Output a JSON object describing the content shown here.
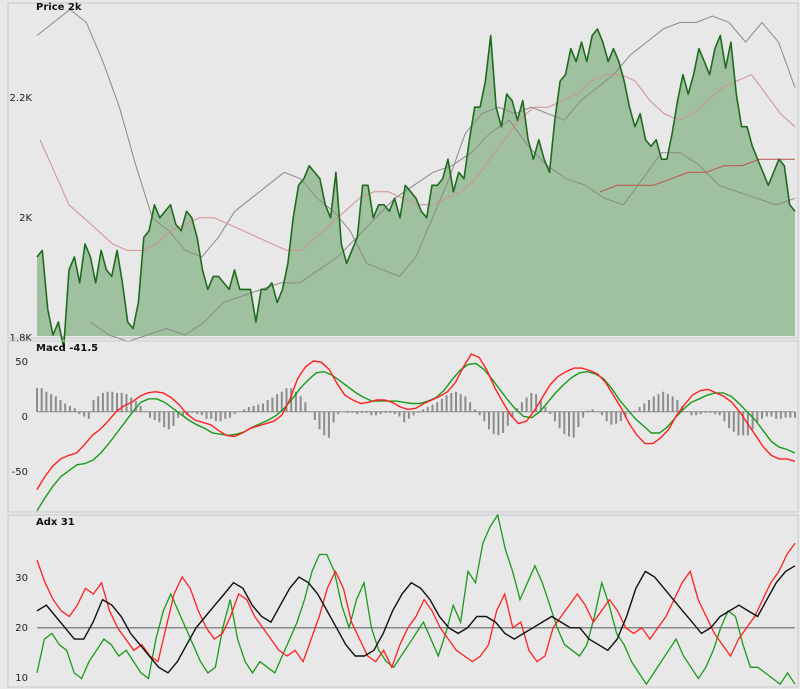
{
  "panels": {
    "price": {
      "title": "Price 2k",
      "ticks": [
        "2.2K",
        "2K",
        "1.8K"
      ]
    },
    "macd": {
      "title": "Macd -41.5",
      "ticks": [
        "50",
        "0",
        "-50"
      ]
    },
    "adx": {
      "title": "Adx 31",
      "ticks": [
        "30",
        "20",
        "10"
      ]
    }
  },
  "colors": {
    "background": "#e8e8e8",
    "border": "#c8c8c8",
    "area_fill": "#9fc19f",
    "price_line": "#1e6b1e",
    "band": "#8a8a8a",
    "ma": "#d09090",
    "long_ma": "#c0504d",
    "macd_line": "#ff2020",
    "signal_line": "#1a9a1a",
    "histogram": "#8c8c8c",
    "adx_line": "#101010",
    "di_plus": "#1a9a1a",
    "di_minus": "#ff2020",
    "ref_line": "#8a8a8a"
  },
  "chart_data": [
    {
      "type": "area",
      "title": "Price 2k",
      "y_range": [
        1.8,
        2.31
      ],
      "y_unit": "K",
      "yticks": [
        1.8,
        2.0,
        2.2
      ],
      "series": [
        {
          "role": "price",
          "values": [
            1.92,
            1.93,
            1.84,
            1.8,
            1.82,
            1.78,
            1.9,
            1.92,
            1.88,
            1.94,
            1.92,
            1.88,
            1.93,
            1.9,
            1.89,
            1.93,
            1.88,
            1.82,
            1.81,
            1.85,
            1.95,
            1.96,
            2.0,
            1.98,
            1.99,
            2.0,
            1.97,
            1.96,
            1.99,
            1.98,
            1.95,
            1.9,
            1.87,
            1.89,
            1.89,
            1.88,
            1.87,
            1.9,
            1.87,
            1.87,
            1.87,
            1.82,
            1.87,
            1.87,
            1.88,
            1.85,
            1.87,
            1.91,
            1.98,
            2.03,
            2.04,
            2.06,
            2.05,
            2.04,
            2.0,
            1.98,
            2.05,
            1.94,
            1.91,
            1.93,
            1.95,
            2.03,
            2.03,
            1.98,
            2.0,
            2.0,
            1.99,
            2.01,
            1.98,
            2.03,
            2.02,
            2.01,
            1.99,
            1.98,
            2.03,
            2.03,
            2.04,
            2.07,
            2.02,
            2.05,
            2.04,
            2.1,
            2.15,
            2.15,
            2.19,
            2.26,
            2.15,
            2.12,
            2.17,
            2.16,
            2.13,
            2.16,
            2.1,
            2.07,
            2.1,
            2.07,
            2.05,
            2.13,
            2.19,
            2.2,
            2.24,
            2.22,
            2.25,
            2.22,
            2.26,
            2.27,
            2.25,
            2.22,
            2.24,
            2.22,
            2.19,
            2.15,
            2.12,
            2.14,
            2.1,
            2.09,
            2.1,
            2.07,
            2.07,
            2.11,
            2.16,
            2.2,
            2.17,
            2.2,
            2.24,
            2.22,
            2.2,
            2.24,
            2.26,
            2.21,
            2.25,
            2.17,
            2.12,
            2.12,
            2.09,
            2.07,
            2.05,
            2.03,
            2.05,
            2.07,
            2.06,
            2.0,
            1.99
          ]
        },
        {
          "role": "upper_band",
          "values": [
            2.26,
            2.28,
            2.3,
            2.28,
            2.22,
            2.15,
            2.06,
            1.98,
            1.96,
            1.93,
            1.92,
            1.95,
            1.99,
            2.01,
            2.03,
            2.05,
            2.04,
            2.01,
            1.99,
            1.96,
            1.91,
            1.9,
            1.89,
            1.92,
            1.98,
            2.04,
            2.11,
            2.14,
            2.15,
            2.14,
            2.15,
            2.14,
            2.13,
            2.16,
            2.18,
            2.2,
            2.23,
            2.25,
            2.27,
            2.28,
            2.28,
            2.29,
            2.28,
            2.25,
            2.28,
            2.25,
            2.18
          ]
        },
        {
          "role": "lower_band",
          "values": [
            1.82,
            1.8,
            1.79,
            1.8,
            1.81,
            1.8,
            1.82,
            1.85,
            1.86,
            1.87,
            1.88,
            1.88,
            1.9,
            1.92,
            1.95,
            1.98,
            2.01,
            2.03,
            2.05,
            2.06,
            2.08,
            2.11,
            2.13,
            2.09,
            2.06,
            2.04,
            2.03,
            2.01,
            2.0,
            2.04,
            2.08,
            2.08,
            2.06,
            2.03,
            2.02,
            2.01,
            2.0,
            2.01
          ]
        },
        {
          "role": "moving_average",
          "values": [
            2.1,
            2.05,
            2.0,
            1.98,
            1.96,
            1.94,
            1.93,
            1.93,
            1.94,
            1.96,
            1.97,
            1.98,
            1.98,
            1.97,
            1.96,
            1.95,
            1.94,
            1.93,
            1.93,
            1.95,
            1.97,
            1.99,
            2.01,
            2.02,
            2.02,
            2.01,
            2.0,
            2.0,
            2.01,
            2.02,
            2.04,
            2.07,
            2.1,
            2.13,
            2.15,
            2.15,
            2.16,
            2.17,
            2.19,
            2.2,
            2.2,
            2.19,
            2.16,
            2.14,
            2.13,
            2.14,
            2.16,
            2.18,
            2.19,
            2.2,
            2.17,
            2.14,
            2.12
          ]
        },
        {
          "role": "long_moving_average",
          "values": [
            2.02,
            2.03,
            2.03,
            2.03,
            2.04,
            2.05,
            2.05,
            2.06,
            2.06,
            2.07,
            2.07,
            2.07
          ]
        }
      ]
    },
    {
      "type": "line",
      "title": "Macd -41.5",
      "y_range": [
        -85,
        60
      ],
      "yticks": [
        50,
        0,
        -50
      ],
      "series": [
        {
          "role": "macd",
          "values": [
            -66,
            -55,
            -46,
            -40,
            -37,
            -35,
            -28,
            -20,
            -15,
            -8,
            0,
            5,
            8,
            13,
            16,
            17,
            16,
            12,
            6,
            -2,
            -7,
            -9,
            -11,
            -16,
            -20,
            -21,
            -18,
            -14,
            -12,
            -10,
            -8,
            -3,
            10,
            28,
            38,
            43,
            42,
            36,
            24,
            14,
            10,
            7,
            8,
            10,
            10,
            8,
            4,
            2,
            3,
            7,
            10,
            13,
            17,
            25,
            38,
            49,
            46,
            35,
            20,
            8,
            -3,
            -10,
            -8,
            1,
            12,
            23,
            30,
            34,
            37,
            37,
            35,
            32,
            25,
            14,
            3,
            -10,
            -20,
            -27,
            -27,
            -22,
            -15,
            -3,
            6,
            14,
            18,
            19,
            16,
            13,
            8,
            0,
            -10,
            -20,
            -30,
            -37,
            -40,
            -40,
            -42
          ]
        },
        {
          "role": "signal",
          "values": [
            -84,
            -73,
            -63,
            -55,
            -50,
            -45,
            -44,
            -41,
            -35,
            -27,
            -18,
            -9,
            0,
            8,
            11,
            11,
            8,
            3,
            -2,
            -7,
            -11,
            -14,
            -18,
            -19,
            -20,
            -19,
            -17,
            -13,
            -10,
            -7,
            -3,
            3,
            11,
            20,
            27,
            33,
            34,
            31,
            26,
            21,
            16,
            12,
            9,
            9,
            9,
            9,
            8,
            7,
            7,
            9,
            12,
            18,
            27,
            35,
            40,
            41,
            36,
            28,
            19,
            10,
            2,
            -4,
            -5,
            0,
            8,
            16,
            23,
            29,
            33,
            34,
            32,
            28,
            20,
            10,
            2,
            -6,
            -12,
            -18,
            -18,
            -13,
            -5,
            2,
            8,
            11,
            14,
            16,
            16,
            13,
            7,
            0,
            -7,
            -16,
            -25,
            -30,
            -32,
            -35
          ]
        },
        {
          "role": "histogram",
          "values": [
            20,
            20,
            17,
            15,
            13,
            10,
            7,
            5,
            3,
            -2,
            -4,
            -6,
            10,
            13,
            16,
            17,
            17,
            16,
            16,
            15,
            12,
            9,
            5,
            0,
            -5,
            -7,
            -9,
            -13,
            -15,
            -12,
            -5,
            -3,
            -2,
            -1,
            -2,
            -3,
            -6,
            -6,
            -8,
            -8,
            -6,
            -5,
            -2,
            0,
            2,
            4,
            5,
            6,
            7,
            10,
            12,
            15,
            17,
            20,
            20,
            17,
            13,
            8,
            0,
            -7,
            -15,
            -20,
            -22,
            -9,
            -2,
            0,
            -1,
            -1,
            -2,
            -1,
            -1,
            -3,
            -3,
            -2,
            -1,
            -1,
            -2,
            -4,
            -9,
            -6,
            -3,
            -1,
            2,
            4,
            6,
            8,
            11,
            14,
            16,
            17,
            15,
            13,
            8,
            2,
            -3,
            -8,
            -15,
            -19,
            -20,
            -18,
            -12,
            -5,
            3,
            8,
            12,
            16,
            15,
            10,
            4,
            -2,
            -8,
            -14,
            -19,
            -21,
            -22,
            -13,
            -5,
            1,
            2,
            0,
            -3,
            -8,
            -11,
            -10,
            -8,
            -5,
            -2,
            1,
            4,
            7,
            10,
            13,
            15,
            17,
            15,
            13,
            10,
            5,
            0,
            -3,
            -3,
            -2,
            -1,
            -1,
            -2,
            -3,
            -8,
            -14,
            -17,
            -20,
            -20,
            -20,
            -15,
            -9,
            -6,
            -4,
            -4,
            -6,
            -6,
            -5,
            -5,
            -5
          ]
        }
      ]
    },
    {
      "type": "line",
      "title": "Adx 31",
      "y_range": [
        9.5,
        40
      ],
      "yticks": [
        30,
        20,
        10
      ],
      "series": [
        {
          "role": "adx",
          "values": [
            23,
            24,
            22,
            20,
            18,
            18,
            21,
            25,
            24,
            22,
            19,
            17,
            15,
            13,
            12,
            14,
            17,
            20,
            22,
            24,
            26,
            28,
            27,
            24,
            22,
            21,
            24,
            27,
            29,
            28,
            26,
            23,
            20,
            17,
            15,
            15,
            16,
            19,
            23,
            26,
            28,
            27,
            25,
            22,
            20,
            19,
            20,
            22,
            22,
            21,
            19,
            18,
            19,
            20,
            21,
            22,
            21,
            20,
            20,
            18,
            17,
            16,
            18,
            22,
            27,
            30,
            29,
            27,
            25,
            23,
            21,
            19,
            20,
            22,
            23,
            24,
            23,
            22,
            25,
            28,
            30,
            31
          ]
        },
        {
          "role": "di_plus",
          "values": [
            12,
            18,
            19,
            17,
            16,
            12,
            11,
            14,
            16,
            18,
            17,
            15,
            16,
            14,
            12,
            11,
            18,
            23,
            26,
            23,
            20,
            17,
            14,
            12,
            13,
            20,
            25,
            18,
            14,
            12,
            14,
            13,
            12,
            15,
            18,
            21,
            25,
            30,
            33,
            33,
            30,
            24,
            20,
            25,
            28,
            20,
            16,
            14,
            13,
            15,
            17,
            19,
            21,
            18,
            15,
            19,
            24,
            21,
            30,
            28,
            35,
            38,
            40,
            34,
            30,
            25,
            28,
            31,
            28,
            24,
            20,
            17,
            16,
            15,
            17,
            22,
            28,
            24,
            19,
            17,
            14,
            12,
            10,
            12,
            14,
            16,
            18,
            15,
            13,
            11,
            13,
            16,
            20,
            23,
            22,
            17,
            13,
            13,
            12,
            11,
            10,
            12,
            10
          ]
        },
        {
          "role": "di_minus",
          "values": [
            32,
            28,
            25,
            23,
            22,
            24,
            27,
            26,
            28,
            23,
            20,
            18,
            16,
            17,
            15,
            14,
            20,
            26,
            29,
            27,
            23,
            20,
            18,
            19,
            22,
            26,
            25,
            22,
            20,
            18,
            16,
            15,
            16,
            14,
            18,
            22,
            27,
            30,
            27,
            21,
            18,
            15,
            14,
            16,
            13,
            17,
            20,
            22,
            25,
            23,
            20,
            18,
            16,
            15,
            14,
            15,
            17,
            23,
            26,
            20,
            21,
            16,
            14,
            15,
            20,
            22,
            24,
            26,
            24,
            21,
            23,
            25,
            23,
            20,
            19,
            20,
            18,
            20,
            22,
            25,
            28,
            30,
            25,
            22,
            19,
            17,
            15,
            18,
            20,
            22,
            25,
            28,
            30,
            33,
            35
          ]
        }
      ]
    }
  ]
}
